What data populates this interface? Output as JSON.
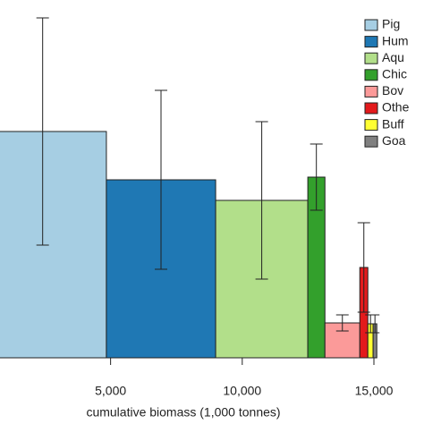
{
  "chart_data": {
    "type": "variable-width-bar",
    "x_label": "cumulative biomass (1,000 tonnes)",
    "xlim": [
      800,
      15000
    ],
    "xticks": [
      {
        "value": 5000,
        "label": "5,000"
      },
      {
        "value": 10000,
        "label": "10,000"
      },
      {
        "value": 15000,
        "label": "15,000"
      }
    ],
    "ylim": [
      0,
      400
    ],
    "series": [
      {
        "name": "Pig",
        "color": "#a6cee3",
        "width": 4840,
        "value": 253,
        "error": 127
      },
      {
        "name": "Hum",
        "color": "#1f78b4",
        "width": 4150,
        "value": 199,
        "error": 100
      },
      {
        "name": "Aqu",
        "color": "#b2df8a",
        "width": 3500,
        "value": 176,
        "error": 88
      },
      {
        "name": "Chic",
        "color": "#33a02c",
        "width": 650,
        "value": 202,
        "error": 37
      },
      {
        "name": "Bov",
        "color": "#fb9a99",
        "width": 1325,
        "value": 39,
        "error": 9
      },
      {
        "name": "Othe",
        "color": "#e31a1c",
        "width": 305,
        "value": 101,
        "error": 50
      },
      {
        "name": "Buff",
        "color": "#ffff33",
        "width": 200,
        "value": 38,
        "error": 10
      },
      {
        "name": "Goa",
        "color": "#808080",
        "width": 140,
        "value": 38,
        "error": 10
      }
    ]
  }
}
